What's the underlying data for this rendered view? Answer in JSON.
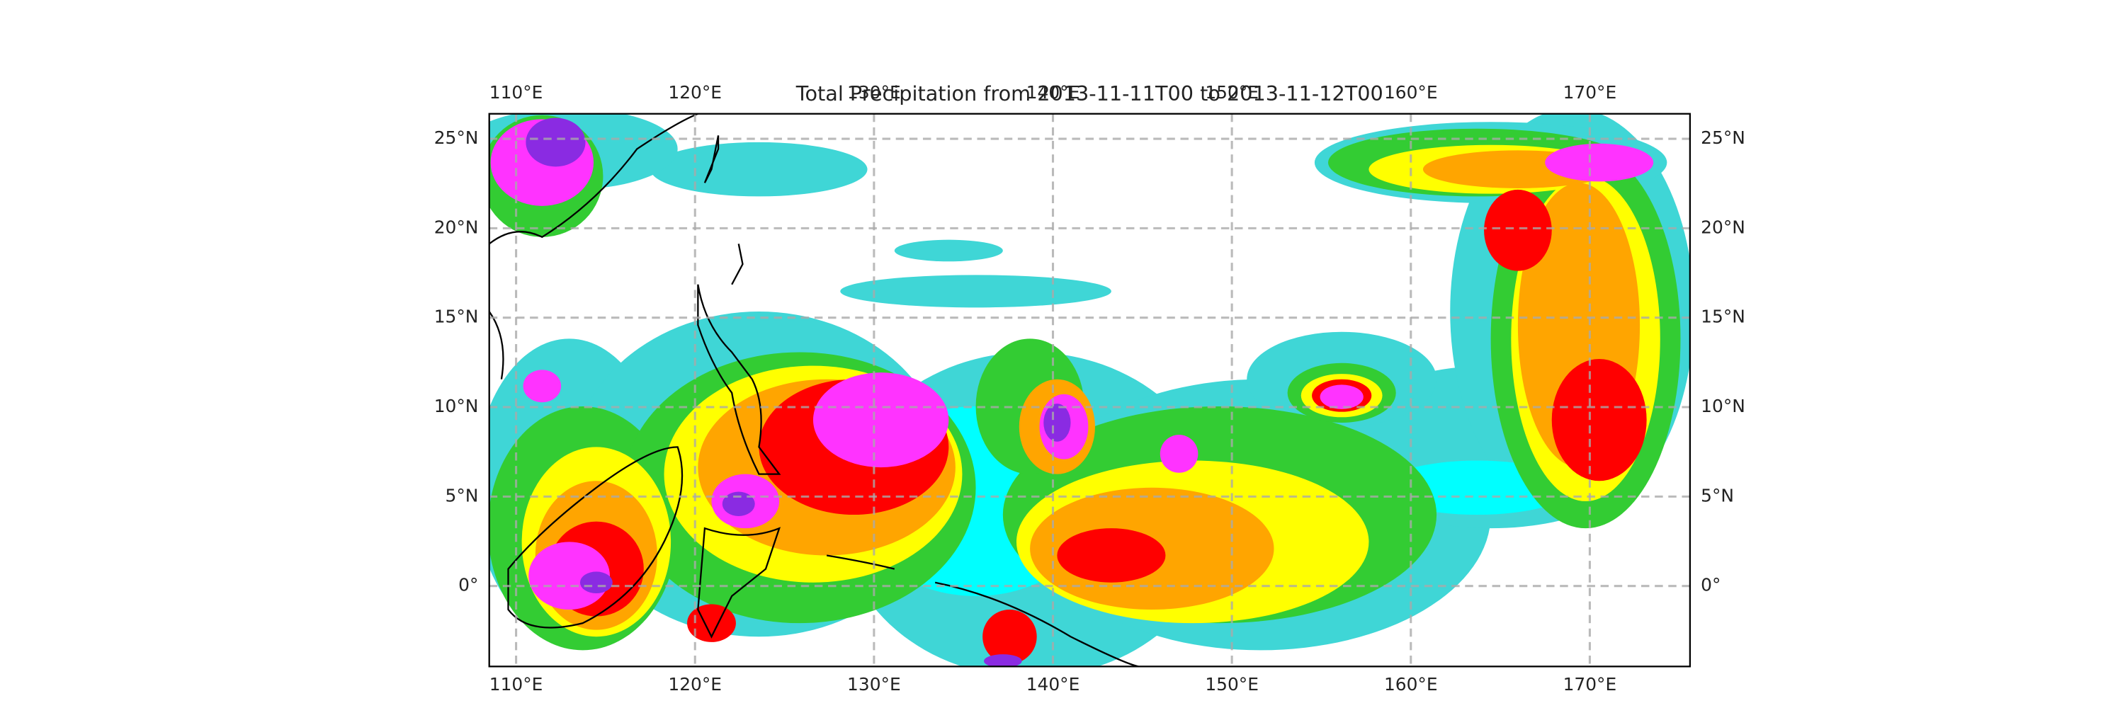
{
  "map": {
    "type": "map",
    "title": "Total Precipitation from 2013-11-11T00 to 2013-11-12T00",
    "xlim": [
      108.5,
      175.6
    ],
    "ylim": [
      -4.5,
      26.4
    ],
    "xticks": [
      {
        "value": 110,
        "label": "110°E"
      },
      {
        "value": 120,
        "label": "120°E"
      },
      {
        "value": 130,
        "label": "130°E"
      },
      {
        "value": 140,
        "label": "140°E"
      },
      {
        "value": 150,
        "label": "150°E"
      },
      {
        "value": 160,
        "label": "160°E"
      },
      {
        "value": 170,
        "label": "170°E"
      }
    ],
    "yticks": [
      {
        "value": 0,
        "label": "0°"
      },
      {
        "value": 5,
        "label": "5°N"
      },
      {
        "value": 10,
        "label": "10°N"
      },
      {
        "value": 15,
        "label": "15°N"
      },
      {
        "value": 20,
        "label": "20°N"
      },
      {
        "value": 25,
        "label": "25°N"
      }
    ],
    "grid": true
  }
}
